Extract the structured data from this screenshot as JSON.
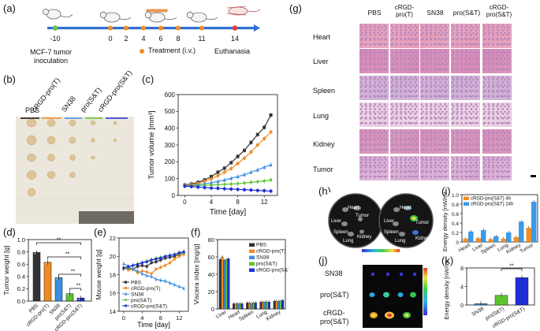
{
  "panels": {
    "a": "(a)",
    "b": "(b)",
    "c": "(c)",
    "d": "(d)",
    "e": "(e)",
    "f": "(f)",
    "g": "(g)",
    "h": "(h)",
    "i": "(i)",
    "j": "(j)",
    "k": "(k)"
  },
  "timeline": {
    "ticks": [
      "-10",
      "0",
      "2",
      "4",
      "6",
      "8",
      "11",
      "14"
    ],
    "mcf7_label_line1": "MCF-7 tumor",
    "mcf7_label_line2": "inoculation",
    "treatment_label": "Treatment (i.v.)",
    "euthanasia_label": "Euthanasia"
  },
  "photo_b": {
    "groups": [
      "PBS",
      "cRGD-pro(T)",
      "SN38",
      "pro(S&T)",
      "cRGD-pro(S&T)"
    ]
  },
  "fluor": {
    "h_labels": [
      "Heart",
      "Liver",
      "Tumor",
      "Spleen",
      "Lung",
      "Kidney",
      "Heart",
      "Liver",
      "Tumor",
      "Spleen",
      "Lung",
      "Kidney"
    ],
    "j_rows": [
      "SN38",
      "pro(S&T)",
      "cRGD-",
      "pro(S&T)"
    ]
  },
  "histology": {
    "columns": [
      "PBS",
      "cRGD-",
      "pro(T)",
      "SN38",
      "pro(S&T)",
      "cRGD-",
      "pro(S&T)"
    ],
    "rows": [
      "Heart",
      "Liver",
      "Spleen",
      "Lung",
      "Kidney",
      "Tumor"
    ]
  },
  "colors": {
    "pbs": "#333333",
    "crgd_t": "#f08a24",
    "sn38": "#3b8fe0",
    "pro_st": "#5cc430",
    "crgd_st": "#1f2fd6",
    "he_pink": "#e9b6cc",
    "he_purple": "#b98ac0"
  },
  "chart_data": [
    {
      "id": "c",
      "type": "line",
      "xlabel": "Time [day]",
      "ylabel": "Tumor volume [mm³]",
      "xlim": [
        -1,
        14
      ],
      "ylim": [
        0,
        600
      ],
      "xticks": [
        "0",
        "4",
        "8",
        "12"
      ],
      "yticks": [
        "0",
        "100",
        "200",
        "300",
        "400",
        "500",
        "600"
      ],
      "x": [
        0,
        1,
        2,
        3,
        4,
        5,
        6,
        7,
        8,
        9,
        10,
        11,
        12,
        13
      ],
      "series": [
        {
          "name": "PBS",
          "values": [
            62,
            68,
            78,
            92,
            112,
            138,
            162,
            195,
            232,
            268,
            315,
            362,
            405,
            478
          ]
        },
        {
          "name": "cRGD-pro(T)",
          "values": [
            60,
            64,
            72,
            84,
            98,
            118,
            138,
            160,
            190,
            222,
            258,
            300,
            338,
            378
          ]
        },
        {
          "name": "SN38",
          "values": [
            58,
            60,
            64,
            70,
            76,
            84,
            92,
            102,
            112,
            124,
            138,
            152,
            168,
            182
          ]
        },
        {
          "name": "pro(S&T)",
          "values": [
            56,
            57,
            58,
            60,
            62,
            64,
            66,
            68,
            70,
            74,
            78,
            82,
            86,
            92
          ]
        },
        {
          "name": "cRGD-pro(S&T)",
          "values": [
            55,
            53,
            50,
            47,
            44,
            42,
            40,
            38,
            36,
            34,
            32,
            30,
            28,
            26
          ]
        }
      ]
    },
    {
      "id": "d",
      "type": "bar",
      "ylabel": "Tumor weight [g]",
      "ylim": [
        0,
        1.0
      ],
      "yticks": [
        "0.0",
        "0.2",
        "0.4",
        "0.6",
        "0.8",
        "1.0"
      ],
      "categories": [
        "PBS",
        "cRGD-pro(T)",
        "SN38",
        "pro(S&T)",
        "cRGD-pro(S&T)"
      ],
      "values": [
        0.79,
        0.63,
        0.38,
        0.12,
        0.05
      ],
      "significance": [
        "**",
        "**",
        "**",
        "**"
      ]
    },
    {
      "id": "e",
      "type": "line",
      "xlabel": "Time [day]",
      "ylabel": "Mouse weight [g]",
      "xlim": [
        -1,
        14
      ],
      "ylim": [
        14,
        22
      ],
      "xticks": [
        "0",
        "4",
        "8",
        "12"
      ],
      "yticks": [
        "14",
        "16",
        "18",
        "20",
        "22"
      ],
      "x": [
        0,
        1,
        2,
        3,
        4,
        5,
        6,
        7,
        8,
        9,
        10,
        11,
        12,
        13
      ],
      "series": [
        {
          "name": "PBS",
          "values": [
            18.7,
            18.6,
            18.6,
            18.9,
            19.0,
            18.9,
            19.3,
            19.4,
            19.6,
            19.8,
            19.9,
            20.0,
            20.2,
            20.4
          ]
        },
        {
          "name": "cRGD-pro(T)",
          "values": [
            18.8,
            18.5,
            18.6,
            18.2,
            18.4,
            18.3,
            18.1,
            18.6,
            18.8,
            19.0,
            19.3,
            19.7,
            20.0,
            20.2
          ]
        },
        {
          "name": "SN38",
          "values": [
            19.2,
            18.9,
            18.6,
            18.4,
            18.1,
            17.9,
            17.8,
            17.5,
            17.4,
            17.3,
            17.1,
            16.9,
            16.7,
            16.5
          ]
        },
        {
          "name": "pro(S&T)",
          "values": [
            18.6,
            18.8,
            19.0,
            19.2,
            19.3,
            19.5,
            19.6,
            19.8,
            19.9,
            20.0,
            20.1,
            20.2,
            20.3,
            20.4
          ]
        },
        {
          "name": "cRGD-pro(S&T)",
          "values": [
            18.7,
            18.9,
            19.0,
            19.1,
            19.3,
            19.4,
            19.6,
            19.7,
            19.8,
            20.0,
            20.1,
            20.2,
            20.4,
            20.5
          ]
        }
      ]
    },
    {
      "id": "f",
      "type": "bar",
      "ylabel": "Viscera index [mg/g]",
      "ylim": [
        0,
        80
      ],
      "yticks": [
        "0",
        "20",
        "40",
        "60",
        "80"
      ],
      "categories": [
        "Liver",
        "Heart",
        "Spleen",
        "Lung",
        "Kidney"
      ],
      "series": [
        {
          "name": "PBS",
          "values": [
            57,
            6,
            7,
            8,
            9
          ]
        },
        {
          "name": "cRGD-pro(T)",
          "values": [
            60,
            6,
            7,
            8,
            9
          ]
        },
        {
          "name": "SN38",
          "values": [
            56,
            6,
            6,
            8,
            9
          ]
        },
        {
          "name": "pro(S&T)",
          "values": [
            57,
            6,
            7,
            8,
            9
          ]
        },
        {
          "name": "cRGD-pro(S&T)",
          "values": [
            58,
            6,
            7,
            8,
            10
          ]
        }
      ]
    },
    {
      "id": "i",
      "type": "bar",
      "ylabel": "Energy density [nW/mm²]",
      "ylim": [
        0,
        1.0
      ],
      "yticks": [
        "0",
        "0.2",
        "0.4",
        "0.6",
        "0.8",
        "1.0"
      ],
      "categories": [
        "Heart",
        "Liver",
        "Spleen",
        "Lung",
        "Kidney",
        "Tumor"
      ],
      "series": [
        {
          "name": "cRGD-pro(S&T) 4h",
          "values": [
            0.07,
            0.08,
            0.06,
            0.07,
            0.1,
            0.3
          ]
        },
        {
          "name": "cRGD-pro(S&T) 24h",
          "values": [
            0.22,
            0.25,
            0.12,
            0.2,
            0.43,
            0.85
          ]
        }
      ]
    },
    {
      "id": "k",
      "type": "bar",
      "ylabel": "Energy density [nW/mm²]",
      "ylim": [
        0,
        8
      ],
      "yticks": [
        "0",
        "4",
        "8"
      ],
      "categories": [
        "SN38",
        "pro(S&T)",
        "cRGD-pro(S&T)"
      ],
      "values": [
        0.3,
        2.1,
        5.9
      ],
      "significance": [
        "**"
      ]
    }
  ]
}
